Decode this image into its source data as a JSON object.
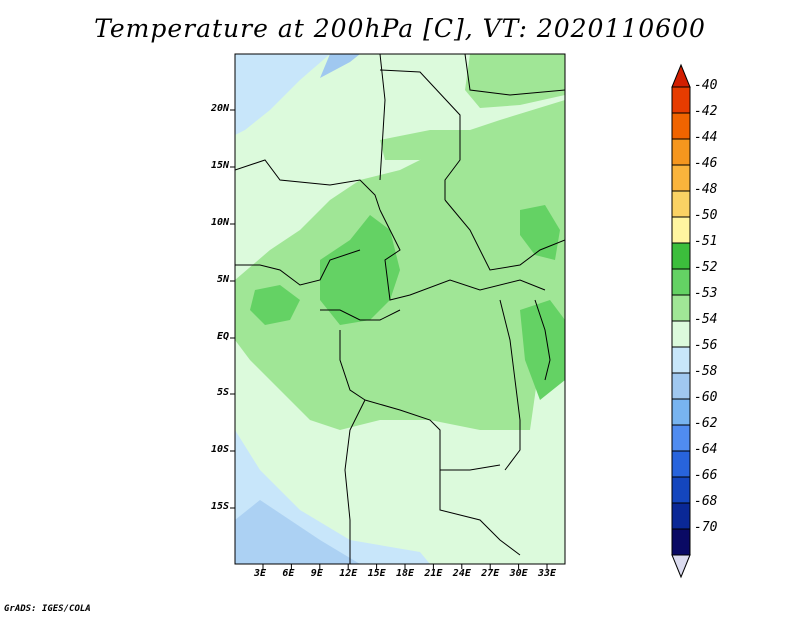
{
  "title": "Temperature at 200hPa [C], VT: 2020110600",
  "credit": "GrADS: IGES/COLA",
  "map": {
    "lat_ticks": [
      "20N",
      "15N",
      "10N",
      "5N",
      "EQ",
      "5S",
      "10S",
      "15S"
    ],
    "lon_ticks": [
      "3E",
      "6E",
      "9E",
      "12E",
      "15E",
      "18E",
      "21E",
      "24E",
      "27E",
      "30E",
      "33E"
    ]
  },
  "colorbar": {
    "labels": [
      "-40",
      "-42",
      "-44",
      "-46",
      "-48",
      "-50",
      "-51",
      "-52",
      "-53",
      "-54",
      "-56",
      "-58",
      "-60",
      "-62",
      "-64",
      "-66",
      "-68",
      "-70"
    ],
    "colors": [
      "#d21e00",
      "#e63c00",
      "#f06400",
      "#f5961e",
      "#fab43c",
      "#fad264",
      "#fff5a0",
      "#3cbe3c",
      "#64d264",
      "#a0e696",
      "#dcfadc",
      "#c8e6fa",
      "#a0c8f0",
      "#78b4f0",
      "#508cf0",
      "#2864dc",
      "#1446be",
      "#0a2896",
      "#0a0a64",
      "#dcdcf0"
    ]
  }
}
